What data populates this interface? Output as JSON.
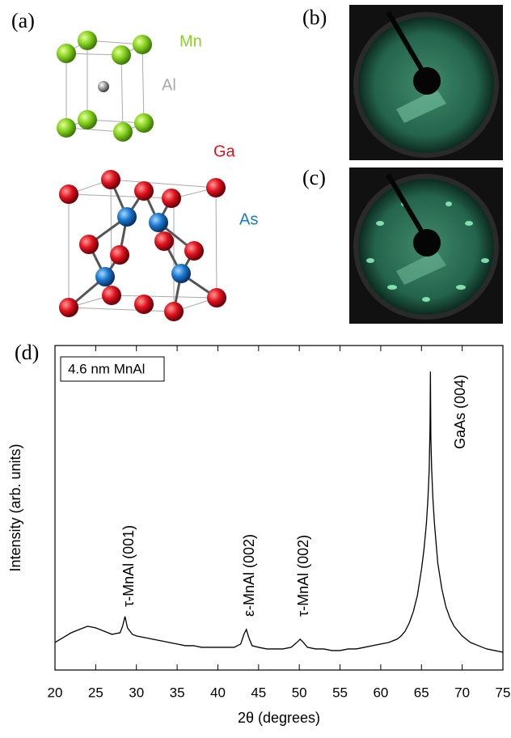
{
  "panels": {
    "a": "(a)",
    "b": "(b)",
    "c": "(c)",
    "d": "(d)"
  },
  "atoms": {
    "mn": "Mn",
    "al": "Al",
    "ga": "Ga",
    "as": "As"
  },
  "chart_data": {
    "type": "line",
    "x_label": "2θ (degrees)",
    "y_label": "Intensity (arb. units)",
    "label_box": "4.6 nm MnAl",
    "annotations": [
      "τ-MnAl (001)",
      "ε-MnAl (002)",
      "τ-MnAl (002)",
      "GaAs (004)"
    ],
    "color": "#000000",
    "xlim": [
      20,
      75
    ],
    "ylim": [
      0,
      100
    ],
    "xticks": [
      20,
      25,
      30,
      35,
      40,
      45,
      50,
      55,
      60,
      65,
      70,
      75
    ],
    "x": [
      20,
      21,
      22,
      23,
      24,
      25,
      26,
      27,
      28,
      28.3,
      28.6,
      28.9,
      29.5,
      30,
      31,
      32,
      33,
      34,
      35,
      36,
      37,
      38,
      39,
      40,
      41,
      42,
      42.8,
      43.2,
      43.5,
      43.8,
      44.2,
      45,
      46,
      47,
      48,
      49,
      49.7,
      50.1,
      50.5,
      51,
      52,
      53,
      54,
      55,
      56,
      57,
      58,
      59,
      60,
      61,
      62,
      62.5,
      63,
      63.5,
      64,
      64.5,
      65,
      65.3,
      65.6,
      65.8,
      65.95,
      66.05,
      66.1,
      66.15,
      66.25,
      66.4,
      66.6,
      66.8,
      67,
      67.5,
      68,
      68.5,
      69,
      70,
      71,
      72,
      73,
      74,
      75
    ],
    "values": [
      8.5,
      10,
      11.5,
      12.5,
      13.5,
      13,
      12,
      11,
      11.5,
      13.5,
      16.5,
      13,
      11,
      10.5,
      10,
      9.5,
      9,
      8.5,
      8,
      7.5,
      7.5,
      7,
      7,
      7,
      7,
      7,
      8,
      11,
      12.5,
      10,
      7.5,
      7,
      6.5,
      6.5,
      6.5,
      7,
      8.5,
      9.5,
      8.5,
      7,
      6.5,
      6.5,
      6,
      6,
      6.5,
      6.5,
      7,
      7.5,
      8,
      8.5,
      9.5,
      10.5,
      12,
      14.5,
      18,
      23,
      31,
      37,
      45,
      53,
      62,
      75,
      92,
      72,
      62,
      53,
      45,
      39,
      33,
      25,
      19.5,
      16,
      13.5,
      10.5,
      8.5,
      7.5,
      6.5,
      6,
      5.5
    ]
  }
}
